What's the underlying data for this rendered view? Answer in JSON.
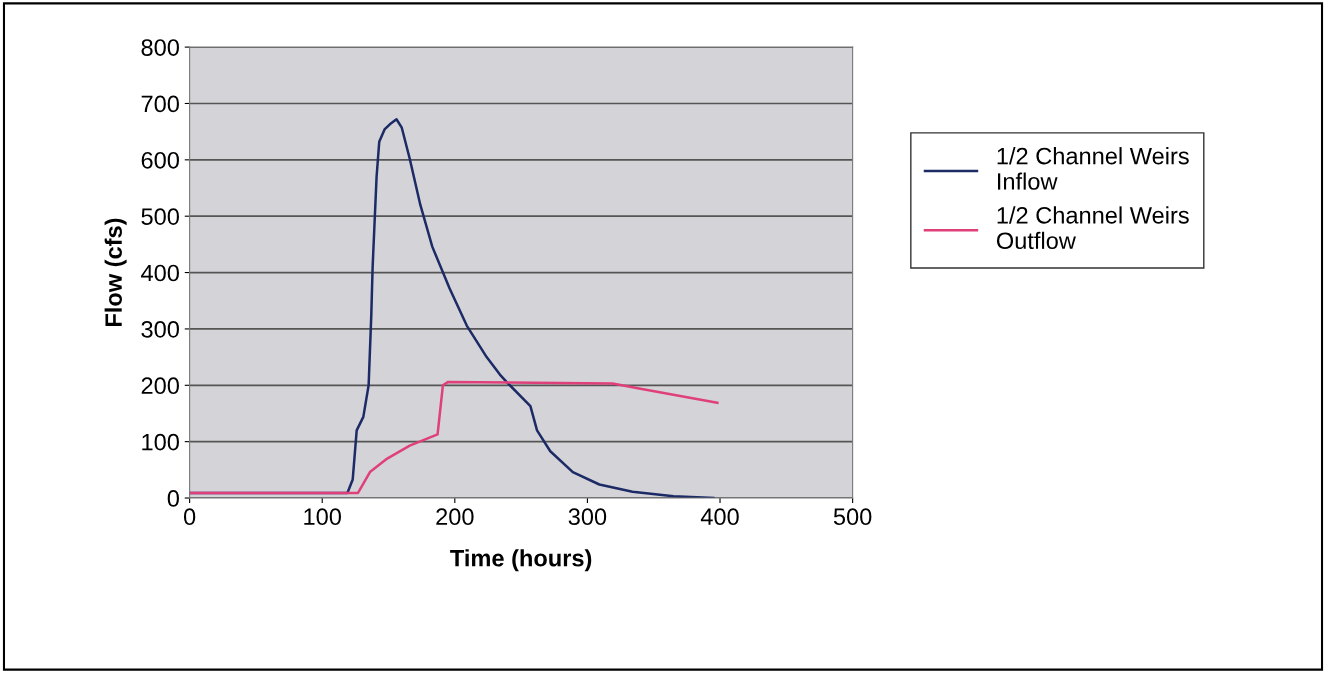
{
  "chart_data": {
    "type": "line",
    "xlabel": "Time (hours)",
    "ylabel": "Flow (cfs)",
    "xlim": [
      0,
      500
    ],
    "xticks": [
      0,
      100,
      200,
      300,
      400,
      500
    ],
    "ylim": [
      0,
      800
    ],
    "yticks": [
      0,
      100,
      200,
      300,
      400,
      500,
      600,
      700,
      800
    ],
    "grid": "y",
    "legend": "right",
    "marker": "none",
    "line_style": "solid",
    "series": [
      {
        "name": "1/2 Channel Weirs\nInflow",
        "color": "#1c2a66",
        "x": [
          0,
          119,
          123,
          126,
          131,
          135,
          137,
          138,
          141,
          143,
          147,
          151,
          156,
          160,
          166,
          174,
          183,
          196,
          209,
          224,
          234,
          239,
          257,
          262,
          272,
          289,
          309,
          334,
          365,
          395
        ],
        "values": [
          9,
          9,
          33,
          120,
          144,
          200,
          324,
          409,
          570,
          632,
          654,
          663,
          672,
          657,
          602,
          520,
          446,
          372,
          306,
          250,
          219,
          206,
          163,
          120,
          83,
          46,
          24,
          11,
          3,
          0
        ]
      },
      {
        "name": "1/2 Channel Weirs\nOutflow",
        "color": "#e0407a",
        "x": [
          0,
          127,
          136,
          149,
          166,
          187,
          191,
          195,
          319,
          340,
          398
        ],
        "values": [
          9,
          9,
          46,
          70,
          93,
          113,
          200,
          206,
          203,
          194,
          169
        ]
      }
    ]
  }
}
